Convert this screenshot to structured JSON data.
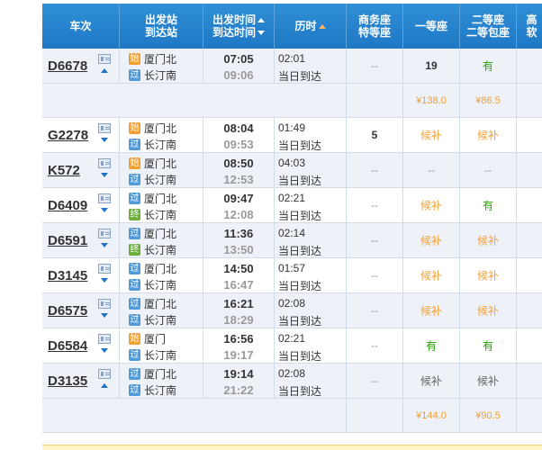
{
  "header": {
    "train": "车次",
    "from_to_1": "出发站",
    "from_to_2": "到达站",
    "time_1": "出发时间",
    "time_2": "到达时间",
    "duration": "历时",
    "business_1": "商务座",
    "business_2": "特等座",
    "first": "一等座",
    "second_1": "二等座",
    "second_2": "二等包座",
    "cut": "高",
    "cut2": "软"
  },
  "badges": {
    "start": "始",
    "pass": "过",
    "end": "终"
  },
  "rows": [
    {
      "no": "D6678",
      "arrow": "up",
      "from_badge": "始",
      "from": "厦门北",
      "to_badge": "过",
      "to": "长汀南",
      "dep": "07:05",
      "arr": "09:06",
      "dur": "02:01",
      "day": "当日到达",
      "business": "--",
      "first": "19",
      "second": "有"
    },
    {
      "no": "G2278",
      "arrow": "down",
      "from_badge": "始",
      "from": "厦门北",
      "to_badge": "过",
      "to": "长汀南",
      "dep": "08:04",
      "arr": "09:53",
      "dur": "01:49",
      "day": "当日到达",
      "business": "5",
      "first": "候补",
      "second": "候补"
    },
    {
      "no": "K572",
      "arrow": "down",
      "from_badge": "始",
      "from": "厦门北",
      "to_badge": "过",
      "to": "长汀南",
      "dep": "08:50",
      "arr": "12:53",
      "dur": "04:03",
      "day": "当日到达",
      "business": "--",
      "first": "--",
      "second": "--"
    },
    {
      "no": "D6409",
      "arrow": "down",
      "from_badge": "过",
      "from": "厦门北",
      "to_badge": "终",
      "to": "长汀南",
      "dep": "09:47",
      "arr": "12:08",
      "dur": "02:21",
      "day": "当日到达",
      "business": "--",
      "first": "候补",
      "second": "有"
    },
    {
      "no": "D6591",
      "arrow": "down",
      "from_badge": "过",
      "from": "厦门北",
      "to_badge": "终",
      "to": "长汀南",
      "dep": "11:36",
      "arr": "13:50",
      "dur": "02:14",
      "day": "当日到达",
      "business": "--",
      "first": "候补",
      "second": "候补"
    },
    {
      "no": "D3145",
      "arrow": "down",
      "from_badge": "过",
      "from": "厦门北",
      "to_badge": "过",
      "to": "长汀南",
      "dep": "14:50",
      "arr": "16:47",
      "dur": "01:57",
      "day": "当日到达",
      "business": "--",
      "first": "候补",
      "second": "候补"
    },
    {
      "no": "D6575",
      "arrow": "down",
      "from_badge": "过",
      "from": "厦门北",
      "to_badge": "过",
      "to": "长汀南",
      "dep": "16:21",
      "arr": "18:29",
      "dur": "02:08",
      "day": "当日到达",
      "business": "--",
      "first": "候补",
      "second": "候补"
    },
    {
      "no": "D6584",
      "arrow": "down",
      "from_badge": "始",
      "from": "厦门",
      "to_badge": "过",
      "to": "长汀南",
      "dep": "16:56",
      "arr": "19:17",
      "dur": "02:21",
      "day": "当日到达",
      "business": "--",
      "first": "有",
      "second": "有"
    },
    {
      "no": "D3135",
      "arrow": "up",
      "from_badge": "过",
      "from": "厦门北",
      "to_badge": "过",
      "to": "长汀南",
      "dep": "19:14",
      "arr": "21:22",
      "dur": "02:08",
      "day": "当日到达",
      "business": "--",
      "first": "候补",
      "second": "候补"
    }
  ],
  "price_rows": [
    {
      "after_row": 0,
      "first": "¥138.0",
      "second": "¥86.5"
    },
    {
      "after_row": 8,
      "first": "¥144.0",
      "second": "¥90.5"
    }
  ],
  "colors": {
    "header_bg": "#2578c7",
    "available": "#26a306",
    "waitlist": "#f2a13a",
    "price": "#f0a030",
    "row_alt": "#eef1f8"
  }
}
